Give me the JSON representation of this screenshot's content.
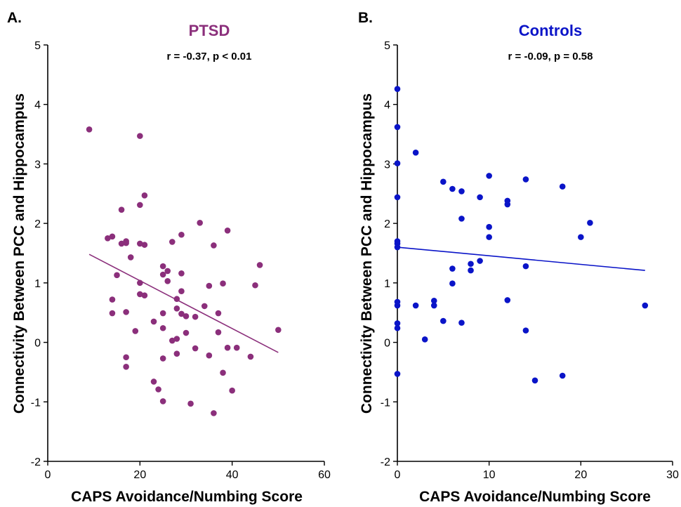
{
  "chart_data": [
    {
      "type": "scatter",
      "panel_label": "A.",
      "title": "PTSD",
      "subtitle": "r = -0.37, p < 0.01",
      "xlabel": "CAPS Avoidance/Numbing Score",
      "ylabel": "Connectivity Between PCC and Hippocampus",
      "xlim": [
        0,
        60
      ],
      "ylim": [
        -2,
        5
      ],
      "xticks": [
        0,
        20,
        40,
        60
      ],
      "yticks": [
        -2,
        -1,
        0,
        1,
        2,
        3,
        4,
        5
      ],
      "color": "#8b2f7b",
      "grid": false,
      "trendline": [
        [
          9,
          1.48
        ],
        [
          50,
          -0.17
        ]
      ],
      "points": [
        [
          9,
          3.58
        ],
        [
          20,
          3.47
        ],
        [
          21,
          2.47
        ],
        [
          20,
          2.31
        ],
        [
          16,
          2.23
        ],
        [
          13,
          1.75
        ],
        [
          14,
          1.78
        ],
        [
          16,
          1.66
        ],
        [
          17,
          1.67
        ],
        [
          17,
          1.7
        ],
        [
          20,
          1.66
        ],
        [
          21,
          1.64
        ],
        [
          18,
          1.43
        ],
        [
          15,
          1.13
        ],
        [
          20,
          1.0
        ],
        [
          20,
          0.81
        ],
        [
          21,
          0.79
        ],
        [
          14,
          0.72
        ],
        [
          14,
          0.49
        ],
        [
          17,
          0.51
        ],
        [
          19,
          0.19
        ],
        [
          17,
          -0.25
        ],
        [
          17,
          -0.41
        ],
        [
          33,
          2.01
        ],
        [
          39,
          1.88
        ],
        [
          29,
          1.81
        ],
        [
          27,
          1.69
        ],
        [
          36,
          1.63
        ],
        [
          25,
          1.28
        ],
        [
          26,
          1.2
        ],
        [
          25,
          1.14
        ],
        [
          29,
          1.16
        ],
        [
          26,
          1.03
        ],
        [
          29,
          0.86
        ],
        [
          28,
          0.73
        ],
        [
          28,
          0.57
        ],
        [
          25,
          0.49
        ],
        [
          29,
          0.48
        ],
        [
          30,
          0.44
        ],
        [
          23,
          0.35
        ],
        [
          25,
          0.24
        ],
        [
          30,
          0.16
        ],
        [
          27,
          0.03
        ],
        [
          28,
          0.06
        ],
        [
          25,
          -0.27
        ],
        [
          28,
          -0.19
        ],
        [
          23,
          -0.66
        ],
        [
          24,
          -0.79
        ],
        [
          25,
          -0.99
        ],
        [
          31,
          -1.03
        ],
        [
          32,
          0.43
        ],
        [
          34,
          0.61
        ],
        [
          35,
          0.95
        ],
        [
          38,
          0.99
        ],
        [
          37,
          0.49
        ],
        [
          37,
          0.17
        ],
        [
          32,
          -0.1
        ],
        [
          35,
          -0.22
        ],
        [
          36,
          -1.19
        ],
        [
          38,
          -0.51
        ],
        [
          39,
          -0.09
        ],
        [
          41,
          -0.09
        ],
        [
          40,
          -0.81
        ],
        [
          44,
          -0.24
        ],
        [
          45,
          0.96
        ],
        [
          46,
          1.3
        ],
        [
          50,
          0.21
        ]
      ]
    },
    {
      "type": "scatter",
      "panel_label": "B.",
      "title": "Controls",
      "subtitle": "r = -0.09, p = 0.58",
      "xlabel": "CAPS Avoidance/Numbing Score",
      "ylabel": "Connectivity Between PCC and Hippocampus",
      "xlim": [
        0,
        30
      ],
      "ylim": [
        -2,
        5
      ],
      "xticks": [
        0,
        10,
        20,
        30
      ],
      "yticks": [
        -2,
        -1,
        0,
        1,
        2,
        3,
        4,
        5
      ],
      "color": "#0a14c8",
      "grid": false,
      "trendline": [
        [
          0,
          1.6
        ],
        [
          27,
          1.21
        ]
      ],
      "points": [
        [
          0,
          4.26
        ],
        [
          0,
          3.62
        ],
        [
          0,
          3.01
        ],
        [
          0,
          2.44
        ],
        [
          0,
          1.7
        ],
        [
          0,
          1.66
        ],
        [
          0,
          1.6
        ],
        [
          0,
          0.68
        ],
        [
          0,
          0.62
        ],
        [
          0,
          0.32
        ],
        [
          0,
          0.24
        ],
        [
          0,
          -0.53
        ],
        [
          2,
          3.19
        ],
        [
          2,
          0.62
        ],
        [
          3,
          0.05
        ],
        [
          4,
          0.7
        ],
        [
          4,
          0.62
        ],
        [
          5,
          2.7
        ],
        [
          5,
          0.36
        ],
        [
          6,
          2.58
        ],
        [
          6,
          1.24
        ],
        [
          6,
          0.99
        ],
        [
          7,
          2.54
        ],
        [
          7,
          2.08
        ],
        [
          7,
          0.33
        ],
        [
          8,
          1.32
        ],
        [
          8,
          1.21
        ],
        [
          9,
          2.44
        ],
        [
          9,
          1.37
        ],
        [
          10,
          2.8
        ],
        [
          10,
          1.94
        ],
        [
          10,
          1.77
        ],
        [
          12,
          2.38
        ],
        [
          12,
          2.32
        ],
        [
          12,
          0.71
        ],
        [
          14,
          2.74
        ],
        [
          14,
          1.28
        ],
        [
          14,
          0.2
        ],
        [
          15,
          -0.64
        ],
        [
          18,
          2.62
        ],
        [
          18,
          -0.56
        ],
        [
          20,
          1.77
        ],
        [
          21,
          2.01
        ],
        [
          27,
          0.62
        ]
      ]
    }
  ]
}
